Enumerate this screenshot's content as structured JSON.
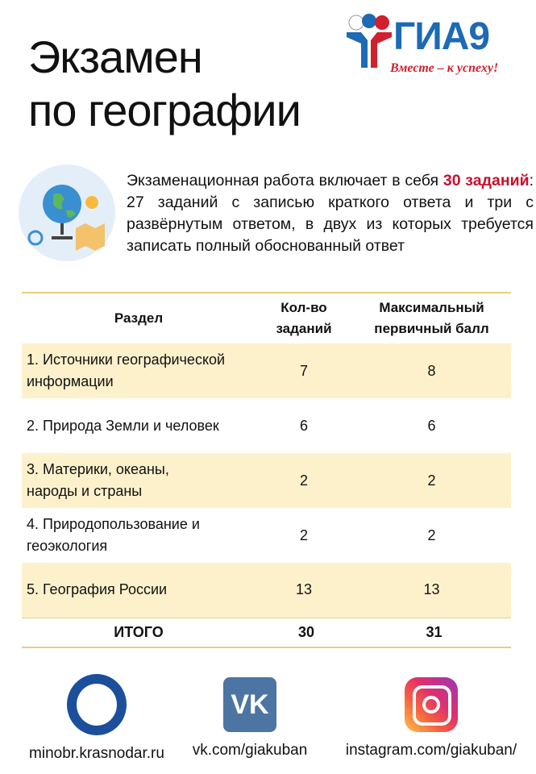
{
  "title_line1": "Экзамен",
  "title_line2": "по географии",
  "logo": {
    "text": "ГИА9",
    "slogan": "Вместе – к успеху!",
    "colors": [
      "#1d6ab5",
      "#d1202e"
    ]
  },
  "intro": {
    "part1": "Экзаменационная работа включает в себя ",
    "highlight": "30 заданий",
    "part2": ": 27 заданий с записью краткого ответа и три с развёрнутым ответом, в двух из которых требуется записать полный обоснованный ответ",
    "accent": "#c8102e"
  },
  "table": {
    "headers": [
      "Раздел",
      "Кол-во заданий",
      "Максимальный первичный балл"
    ],
    "rows": [
      {
        "section": "1. Источники географической информации",
        "count": "7",
        "score": "8"
      },
      {
        "section": "2. Природа Земли и человек",
        "count": "6",
        "score": "6"
      },
      {
        "section": "3. Материки, океаны, народы и страны",
        "count": "2",
        "score": "2"
      },
      {
        "section": "4. Природопользование и геоэкология",
        "count": "2",
        "score": "2"
      },
      {
        "section": "5. География России",
        "count": "13",
        "score": "13"
      }
    ],
    "total": {
      "label": "ИТОГО",
      "count": "30",
      "score": "31"
    }
  },
  "footer": [
    {
      "icon": "ministry-seal-icon",
      "label": "minobr.krasnodar.ru"
    },
    {
      "icon": "vk-icon",
      "glyph": "VK",
      "label": "vk.com/giakuban"
    },
    {
      "icon": "instagram-icon",
      "label": "instagram.com/giakuban/"
    }
  ]
}
